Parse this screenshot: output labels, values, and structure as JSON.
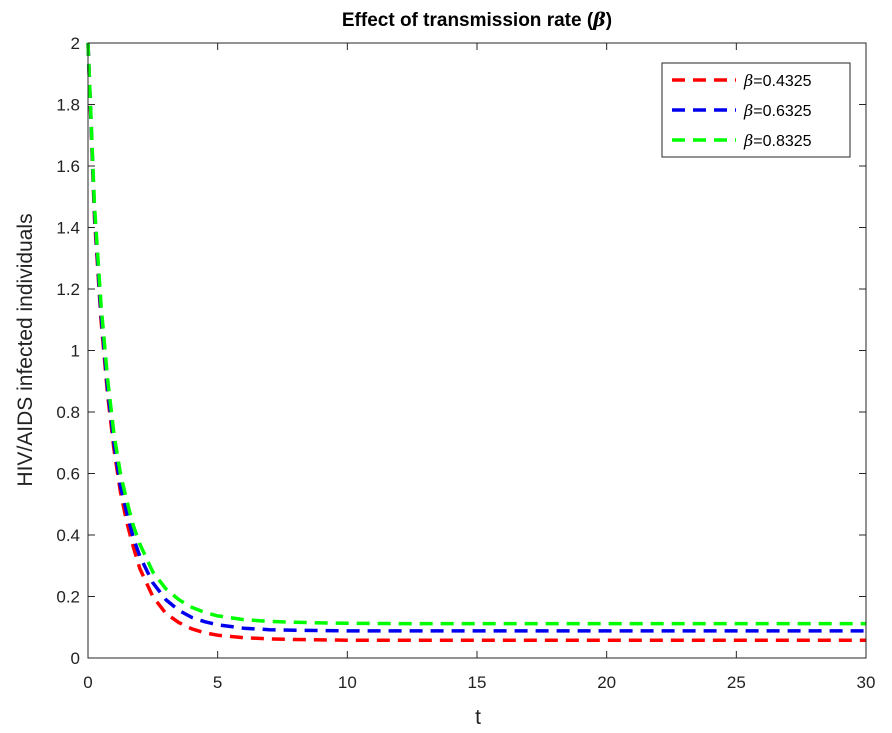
{
  "chart_data": {
    "type": "line",
    "title": "Effect of transmission rate (β)",
    "title_main": "Effect of transmission rate (",
    "title_symbol": "β",
    "title_end": ")",
    "xlabel": "t",
    "ylabel": "HIV/AIDS infected individuals",
    "xlim": [
      0,
      30
    ],
    "ylim": [
      0,
      2
    ],
    "xticks": [
      0,
      5,
      10,
      15,
      20,
      25,
      30
    ],
    "yticks": [
      0,
      0.2,
      0.4,
      0.6,
      0.8,
      1,
      1.2,
      1.4,
      1.6,
      1.8,
      2
    ],
    "xtick_labels": [
      "0",
      "5",
      "10",
      "15",
      "20",
      "25",
      "30"
    ],
    "ytick_labels": [
      "0",
      "0.2",
      "0.4",
      "0.6",
      "0.8",
      "1",
      "1.2",
      "1.4",
      "1.6",
      "1.8",
      "2"
    ],
    "grid": false,
    "legend_position": "top-right",
    "line_style": "dashed",
    "x": [
      0,
      0.25,
      0.5,
      0.75,
      1,
      1.25,
      1.5,
      1.75,
      2,
      2.5,
      3,
      3.5,
      4,
      4.5,
      5,
      6,
      7,
      8,
      9,
      10,
      12,
      15,
      20,
      25,
      30
    ],
    "series": [
      {
        "name": "β=0.4325",
        "legend_symbol": "β",
        "legend_value": "=0.4325",
        "color": "#ff0000",
        "values": [
          2.0,
          1.43,
          1.1,
          0.86,
          0.68,
          0.54,
          0.44,
          0.36,
          0.29,
          0.2,
          0.145,
          0.115,
          0.095,
          0.082,
          0.074,
          0.066,
          0.062,
          0.06,
          0.059,
          0.058,
          0.058,
          0.058,
          0.058,
          0.058,
          0.058
        ]
      },
      {
        "name": "β=0.6325",
        "legend_symbol": "β",
        "legend_value": "=0.6325",
        "color": "#0000ee",
        "values": [
          2.0,
          1.45,
          1.12,
          0.88,
          0.7,
          0.56,
          0.47,
          0.39,
          0.33,
          0.245,
          0.19,
          0.155,
          0.132,
          0.118,
          0.108,
          0.097,
          0.092,
          0.09,
          0.089,
          0.088,
          0.088,
          0.088,
          0.088,
          0.088,
          0.088
        ]
      },
      {
        "name": "β=0.8325",
        "legend_symbol": "β",
        "legend_value": "=0.8325",
        "color": "#00ff00",
        "values": [
          2.0,
          1.47,
          1.15,
          0.91,
          0.73,
          0.6,
          0.51,
          0.43,
          0.37,
          0.28,
          0.225,
          0.19,
          0.165,
          0.148,
          0.137,
          0.125,
          0.119,
          0.116,
          0.114,
          0.113,
          0.112,
          0.112,
          0.112,
          0.112,
          0.112
        ]
      }
    ]
  }
}
